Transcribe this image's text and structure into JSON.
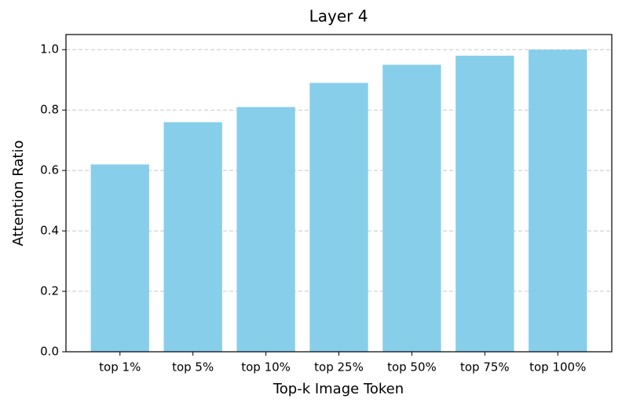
{
  "chart_data": {
    "type": "bar",
    "title": "Layer 4",
    "x_label": "Top-k Image Token",
    "y_label": "Attention Ratio",
    "categories": [
      "top 1%",
      "top 5%",
      "top 10%",
      "top 25%",
      "top 50%",
      "top 75%",
      "top 100%"
    ],
    "values": [
      0.62,
      0.76,
      0.81,
      0.89,
      0.95,
      0.98,
      1.0
    ],
    "color": "#87ceeb",
    "ylim": [
      0,
      1.05
    ],
    "yticks": [
      {
        "value": 0,
        "label": "0.0"
      },
      0.2,
      0.4,
      0.6,
      0.8,
      {
        "value": 1.0,
        "label": "1.0"
      }
    ],
    "grid": true
  }
}
